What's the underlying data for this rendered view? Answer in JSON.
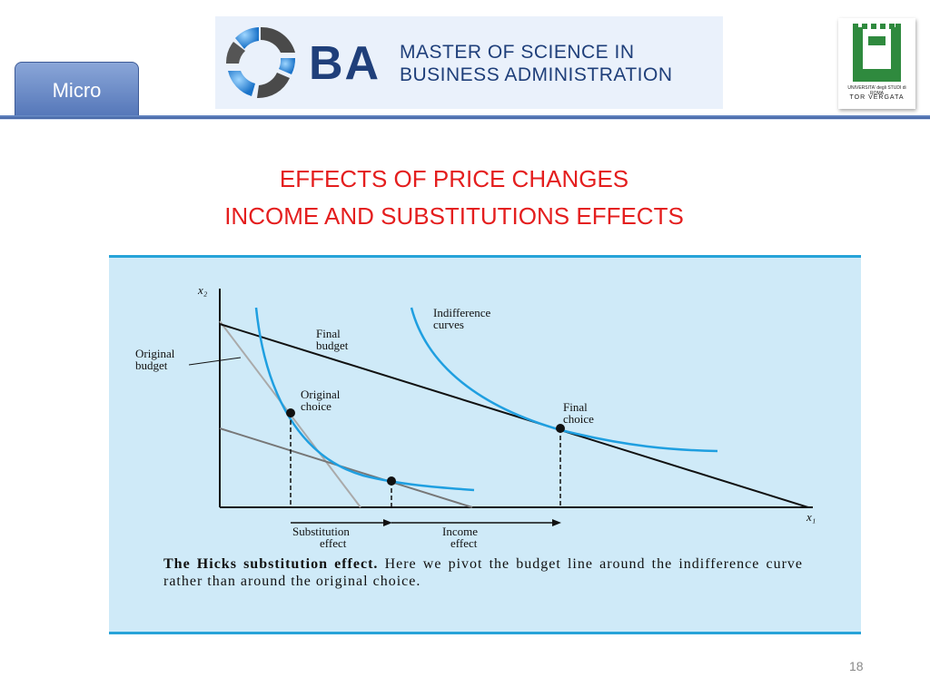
{
  "header": {
    "tab_label": "Micro",
    "banner": {
      "logo_text": "BA",
      "line1": "MASTER OF SCIENCE IN",
      "line2": "BUSINESS ADMINISTRATION"
    },
    "university_logo": {
      "letter": "U",
      "name": "UNIVERSITA' degli STUDI di ROMA",
      "campus": "TOR VERGATA"
    }
  },
  "slide": {
    "title_line1": "EFFECTS OF PRICE CHANGES",
    "title_line2": "INCOME AND SUBSTITUTIONS EFFECTS",
    "page_number": "18"
  },
  "figure": {
    "y_axis_label": "x₂",
    "x_axis_label": "x₁",
    "labels": {
      "original_budget_1": "Original",
      "original_budget_2": "budget",
      "final_budget_1": "Final",
      "final_budget_2": "budget",
      "indifference_1": "Indifference",
      "indifference_2": "curves",
      "original_choice_1": "Original",
      "original_choice_2": "choice",
      "final_choice_1": "Final",
      "final_choice_2": "choice",
      "substitution_1": "Substitution",
      "substitution_2": "effect",
      "income_1": "Income",
      "income_2": "effect"
    },
    "caption_bold": "The Hicks substitution effect.",
    "caption_text": "Here we pivot the budget line around the indifference curve rather than around the original choice.",
    "colors": {
      "curve": "#1f9fe0",
      "background": "#cfeaf8",
      "border": "#27a3d8"
    }
  }
}
